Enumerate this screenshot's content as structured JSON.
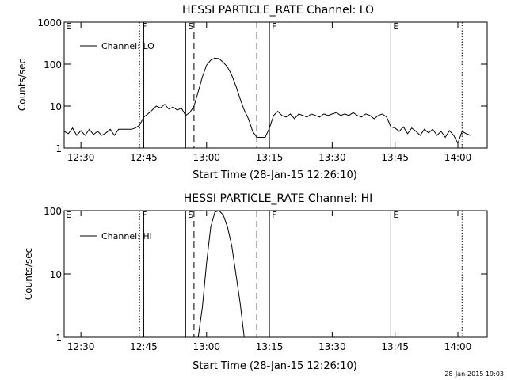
{
  "footer": {
    "timestamp": "28-Jan-2015 19:03"
  },
  "chart_data": [
    {
      "type": "line",
      "title": "HESSI PARTICLE_RATE Channel: LO",
      "xlabel": "Start Time (28-Jan-15 12:26:10)",
      "ylabel": "Counts/sec",
      "yscale": "log",
      "xlim": [
        "12:26",
        "14:07"
      ],
      "ylim": [
        1,
        1000
      ],
      "xticks": [
        "12:30",
        "12:45",
        "13:00",
        "13:15",
        "13:30",
        "13:45",
        "14:00"
      ],
      "yticks": [
        "1",
        "10",
        "100",
        "1000"
      ],
      "legend": {
        "label": "Channel: LO",
        "position": "top-left"
      },
      "markers": [
        {
          "label": "E",
          "time": "12:26",
          "style": "none"
        },
        {
          "label": "F",
          "time": "12:44",
          "style": "dotted"
        },
        {
          "label": "",
          "time": "12:45",
          "style": "solid"
        },
        {
          "label": "S",
          "time": "12:55",
          "style": "solid"
        },
        {
          "label": "",
          "time": "12:57",
          "style": "dashed"
        },
        {
          "label": "",
          "time": "13:12",
          "style": "dashed"
        },
        {
          "label": "F",
          "time": "13:15",
          "style": "solid"
        },
        {
          "label": "E",
          "time": "13:44",
          "style": "solid"
        },
        {
          "label": "",
          "time": "14:01",
          "style": "dotted"
        }
      ],
      "series": [
        {
          "name": "Channel: LO",
          "points": [
            [
              "12:26",
              2.5
            ],
            [
              "12:27",
              2.2
            ],
            [
              "12:28",
              3.0
            ],
            [
              "12:29",
              2.0
            ],
            [
              "12:30",
              2.6
            ],
            [
              "12:31",
              2.0
            ],
            [
              "12:32",
              2.8
            ],
            [
              "12:33",
              2.1
            ],
            [
              "12:34",
              2.5
            ],
            [
              "12:35",
              2.0
            ],
            [
              "12:36",
              2.3
            ],
            [
              "12:37",
              2.8
            ],
            [
              "12:38",
              2.0
            ],
            [
              "12:39",
              2.8
            ],
            [
              "12:40",
              2.8
            ],
            [
              "12:41",
              2.8
            ],
            [
              "12:42",
              2.8
            ],
            [
              "12:43",
              3.0
            ],
            [
              "12:44",
              3.5
            ],
            [
              "12:45",
              5.5
            ],
            [
              "12:46",
              6.5
            ],
            [
              "12:47",
              8.0
            ],
            [
              "12:48",
              10.0
            ],
            [
              "12:49",
              9.0
            ],
            [
              "12:50",
              11.0
            ],
            [
              "12:51",
              8.5
            ],
            [
              "12:52",
              9.5
            ],
            [
              "12:53",
              8.0
            ],
            [
              "12:54",
              9.0
            ],
            [
              "12:55",
              6.0
            ],
            [
              "12:56",
              7.0
            ],
            [
              "12:57",
              10.0
            ],
            [
              "12:58",
              22.0
            ],
            [
              "12:59",
              50.0
            ],
            [
              "13:00",
              95.0
            ],
            [
              "13:01",
              125.0
            ],
            [
              "13:02",
              140.0
            ],
            [
              "13:03",
              135.0
            ],
            [
              "13:04",
              110.0
            ],
            [
              "13:05",
              85.0
            ],
            [
              "13:06",
              55.0
            ],
            [
              "13:07",
              30.0
            ],
            [
              "13:08",
              15.0
            ],
            [
              "13:09",
              8.0
            ],
            [
              "13:10",
              5.0
            ],
            [
              "13:11",
              2.5
            ],
            [
              "13:12",
              1.8
            ],
            [
              "13:13",
              1.8
            ],
            [
              "13:14",
              1.8
            ],
            [
              "13:15",
              3.0
            ],
            [
              "13:16",
              6.0
            ],
            [
              "13:17",
              7.5
            ],
            [
              "13:18",
              6.0
            ],
            [
              "13:19",
              5.5
            ],
            [
              "13:20",
              6.5
            ],
            [
              "13:21",
              5.0
            ],
            [
              "13:22",
              6.5
            ],
            [
              "13:23",
              6.0
            ],
            [
              "13:24",
              5.5
            ],
            [
              "13:25",
              6.5
            ],
            [
              "13:26",
              6.0
            ],
            [
              "13:27",
              5.5
            ],
            [
              "13:28",
              6.5
            ],
            [
              "13:29",
              6.0
            ],
            [
              "13:30",
              6.5
            ],
            [
              "13:31",
              7.0
            ],
            [
              "13:32",
              6.0
            ],
            [
              "13:33",
              6.5
            ],
            [
              "13:34",
              6.0
            ],
            [
              "13:35",
              7.0
            ],
            [
              "13:36",
              6.0
            ],
            [
              "13:37",
              5.5
            ],
            [
              "13:38",
              6.5
            ],
            [
              "13:39",
              6.0
            ],
            [
              "13:40",
              5.0
            ],
            [
              "13:41",
              6.0
            ],
            [
              "13:42",
              6.5
            ],
            [
              "13:43",
              5.5
            ],
            [
              "13:44",
              3.2
            ],
            [
              "13:45",
              3.0
            ],
            [
              "13:46",
              2.5
            ],
            [
              "13:47",
              3.2
            ],
            [
              "13:48",
              2.2
            ],
            [
              "13:49",
              3.0
            ],
            [
              "13:50",
              2.5
            ],
            [
              "13:51",
              2.0
            ],
            [
              "13:52",
              2.8
            ],
            [
              "13:53",
              2.3
            ],
            [
              "13:54",
              2.8
            ],
            [
              "13:55",
              2.0
            ],
            [
              "13:56",
              2.5
            ],
            [
              "13:57",
              1.8
            ],
            [
              "13:58",
              2.6
            ],
            [
              "13:59",
              2.0
            ],
            [
              "14:00",
              1.3
            ],
            [
              "14:01",
              2.5
            ],
            [
              "14:02",
              2.2
            ],
            [
              "14:03",
              2.0
            ]
          ]
        }
      ]
    },
    {
      "type": "line",
      "title": "HESSI PARTICLE_RATE Channel: HI",
      "xlabel": "Start Time (28-Jan-15 12:26:10)",
      "ylabel": "Counts/sec",
      "yscale": "log",
      "xlim": [
        "12:26",
        "14:07"
      ],
      "ylim": [
        1,
        100
      ],
      "xticks": [
        "12:30",
        "12:45",
        "13:00",
        "13:15",
        "13:30",
        "13:45",
        "14:00"
      ],
      "yticks": [
        "1",
        "10",
        "100"
      ],
      "legend": {
        "label": "Channel: HI",
        "position": "top-left"
      },
      "markers": [
        {
          "label": "E",
          "time": "12:26",
          "style": "none"
        },
        {
          "label": "F",
          "time": "12:44",
          "style": "dotted"
        },
        {
          "label": "",
          "time": "12:45",
          "style": "solid"
        },
        {
          "label": "S",
          "time": "12:55",
          "style": "solid"
        },
        {
          "label": "",
          "time": "12:57",
          "style": "dashed"
        },
        {
          "label": "",
          "time": "13:12",
          "style": "dashed"
        },
        {
          "label": "F",
          "time": "13:15",
          "style": "solid"
        },
        {
          "label": "E",
          "time": "13:44",
          "style": "solid"
        },
        {
          "label": "",
          "time": "14:01",
          "style": "dotted"
        }
      ],
      "series": [
        {
          "name": "Channel: HI",
          "points": [
            [
              "12:58",
              1.0
            ],
            [
              "12:59",
              3.0
            ],
            [
              "13:00",
              15.0
            ],
            [
              "13:01",
              55.0
            ],
            [
              "13:02",
              95.0
            ],
            [
              "13:03",
              100.0
            ],
            [
              "13:04",
              85.0
            ],
            [
              "13:05",
              55.0
            ],
            [
              "13:06",
              28.0
            ],
            [
              "13:07",
              10.0
            ],
            [
              "13:08",
              3.5
            ],
            [
              "13:09",
              1.0
            ]
          ]
        }
      ]
    }
  ]
}
